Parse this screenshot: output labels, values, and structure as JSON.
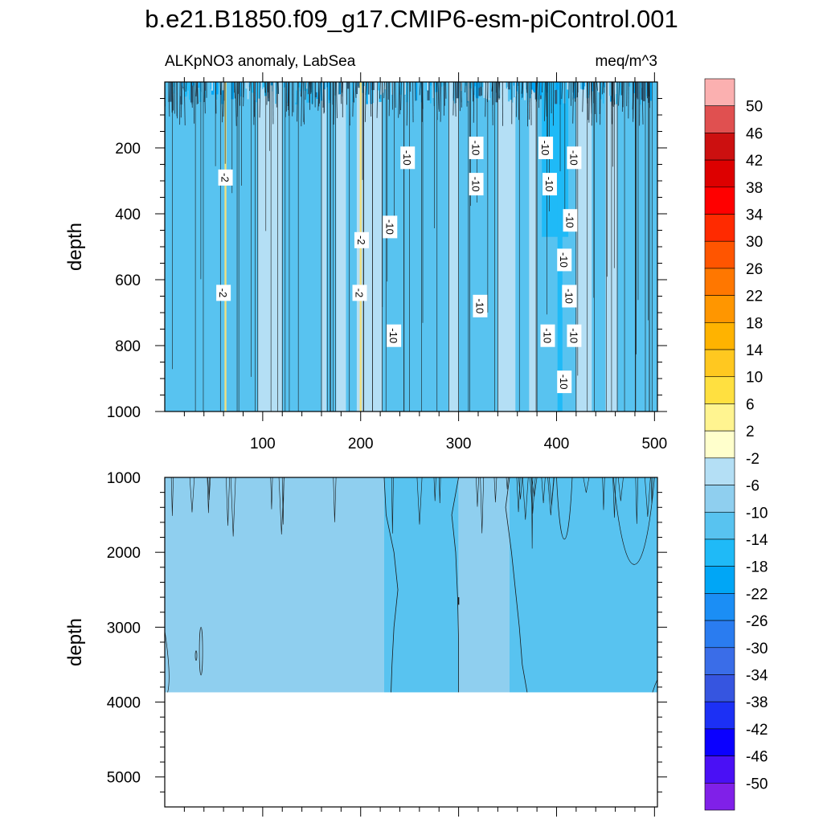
{
  "title": "b.e21.B1850.f09_g17.CMIP6-esm-piControl.001",
  "left_subtitle": "ALKpNO3 anomaly, LabSea",
  "right_subtitle": "meq/m^3",
  "chart_data": [
    {
      "type": "heatmap",
      "panel": "upper",
      "ylabel": "depth",
      "xlim": [
        0,
        503
      ],
      "ylim": [
        1000,
        0
      ],
      "y_reversed": true,
      "xticks": [
        100,
        200,
        300,
        400,
        500
      ],
      "yticks": [
        200,
        400,
        600,
        800,
        1000
      ],
      "contour_labels": [
        {
          "value": "-2",
          "x": 62,
          "depth": 290
        },
        {
          "value": "-2",
          "x": 60,
          "depth": 640
        },
        {
          "value": "-2",
          "x": 201,
          "depth": 480
        },
        {
          "value": "-2",
          "x": 199,
          "depth": 640
        },
        {
          "value": "-10",
          "x": 248,
          "depth": 230
        },
        {
          "value": "-10",
          "x": 230,
          "depth": 440
        },
        {
          "value": "-10",
          "x": 234,
          "depth": 770
        },
        {
          "value": "-10",
          "x": 318,
          "depth": 200
        },
        {
          "value": "-10",
          "x": 318,
          "depth": 310
        },
        {
          "value": "-10",
          "x": 322,
          "depth": 680
        },
        {
          "value": "-10",
          "x": 389,
          "depth": 200
        },
        {
          "value": "-10",
          "x": 393,
          "depth": 310
        },
        {
          "value": "-10",
          "x": 418,
          "depth": 230
        },
        {
          "value": "-10",
          "x": 414,
          "depth": 420
        },
        {
          "value": "-10",
          "x": 408,
          "depth": 540
        },
        {
          "value": "-10",
          "x": 413,
          "depth": 650
        },
        {
          "value": "-10",
          "x": 391,
          "depth": 770
        },
        {
          "value": "-10",
          "x": 418,
          "depth": 770
        },
        {
          "value": "-10",
          "x": 408,
          "depth": 910
        }
      ],
      "dominant_value": -6
    },
    {
      "type": "heatmap",
      "panel": "lower",
      "ylabel": "depth",
      "xlim": [
        0,
        503
      ],
      "ylim": [
        5400,
        1000
      ],
      "y_reversed": true,
      "yticks": [
        1000,
        2000,
        3000,
        4000,
        5000
      ],
      "ocean_bottom_depth": 3870,
      "regions": [
        {
          "x_from": 0,
          "x_to": 224,
          "value": -4
        },
        {
          "x_from": 224,
          "x_to": 300,
          "value": -8
        },
        {
          "x_from": 300,
          "x_to": 352,
          "value": -4
        },
        {
          "x_from": 352,
          "x_to": 503,
          "value": -8
        }
      ]
    }
  ],
  "colorbar": {
    "labels": [
      "50",
      "46",
      "42",
      "38",
      "34",
      "30",
      "26",
      "22",
      "18",
      "14",
      "10",
      "6",
      "2",
      "-2",
      "-6",
      "-10",
      "-14",
      "-18",
      "-22",
      "-26",
      "-30",
      "-34",
      "-38",
      "-42",
      "-46",
      "-50"
    ],
    "colors": [
      "#fbb0b0",
      "#e05050",
      "#cc1010",
      "#dd0000",
      "#ff0000",
      "#ff2a00",
      "#ff5500",
      "#ff7700",
      "#ff9600",
      "#ffb300",
      "#ffc820",
      "#ffe040",
      "#fff490",
      "#ffffcc",
      "#b4dff5",
      "#8fcfef",
      "#58c3f0",
      "#1fbaf7",
      "#00a6f6",
      "#1b8ef5",
      "#2a7cf0",
      "#3a6de8",
      "#3655e0",
      "#1c30f5",
      "#0b00ff",
      "#4a10f5",
      "#8020e8"
    ]
  }
}
